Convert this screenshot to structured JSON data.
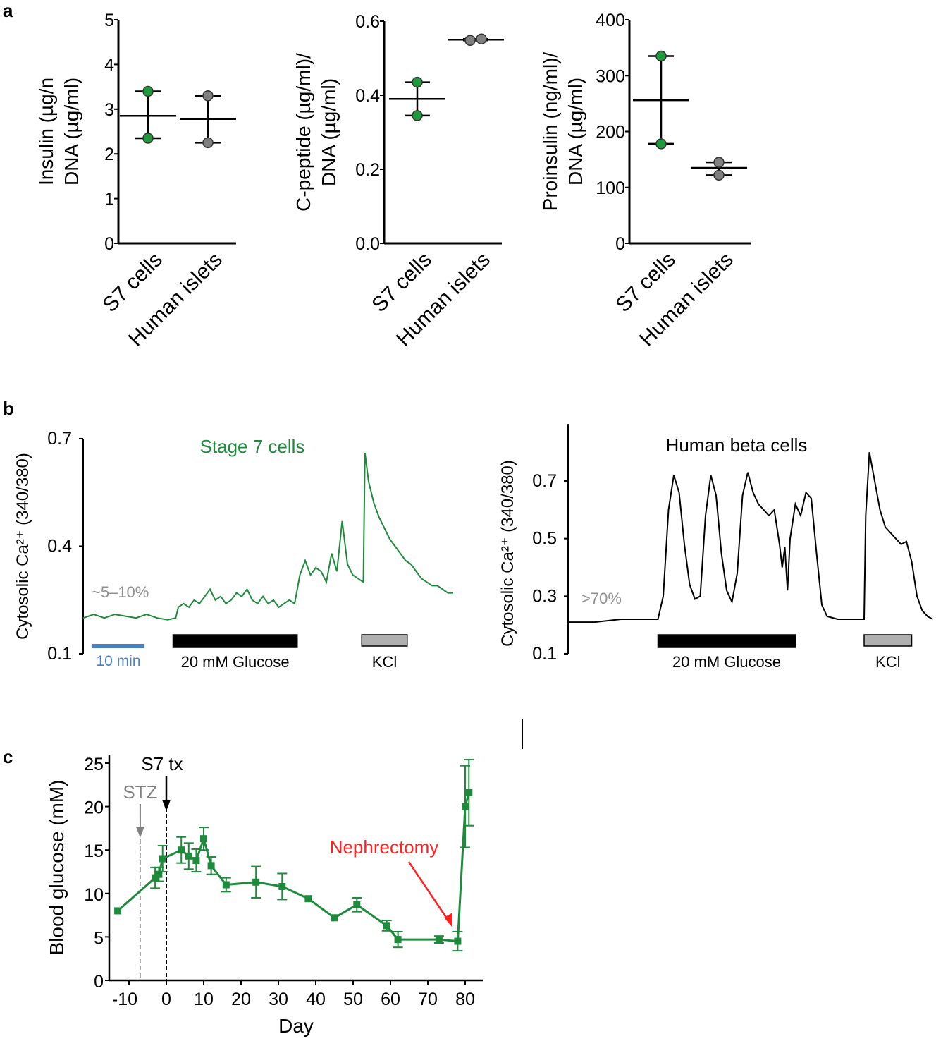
{
  "panel_labels": [
    "a",
    "b",
    "c"
  ],
  "chart_data": [
    {
      "type": "scatter",
      "panel": "a",
      "ylabel_lines": [
        "Insulin (µg/n",
        "DNA (µg/ml)"
      ],
      "ylim": [
        0,
        5
      ],
      "yticks": [
        "0",
        "1",
        "2",
        "3",
        "4",
        "5"
      ],
      "categories": [
        "S7 cells",
        "Human islets"
      ],
      "series": [
        {
          "category": "S7 cells",
          "points": [
            3.4,
            2.35
          ],
          "mean": 2.85,
          "color": "#1e9a3c"
        },
        {
          "category": "Human islets",
          "points": [
            3.3,
            2.25
          ],
          "mean": 2.78,
          "color": "#808080"
        }
      ]
    },
    {
      "type": "scatter",
      "panel": "a",
      "ylabel_lines": [
        "C-peptide (µg/ml)/",
        "DNA (µg/ml)"
      ],
      "ylim": [
        0,
        0.6
      ],
      "yticks": [
        "0.0",
        "0.2",
        "0.4",
        "0.6"
      ],
      "categories": [
        "S7 cells",
        "Human islets"
      ],
      "series": [
        {
          "category": "S7 cells",
          "points": [
            0.435,
            0.345
          ],
          "mean": 0.39,
          "color": "#1e9a3c"
        },
        {
          "category": "Human islets",
          "points": [
            0.548,
            0.552
          ],
          "mean": 0.55,
          "color": "#808080"
        }
      ]
    },
    {
      "type": "scatter",
      "panel": "a",
      "ylabel_lines": [
        "Proinsulin (ng/ml)/",
        "DNA (µg/ml)"
      ],
      "ylim": [
        0,
        400
      ],
      "yticks": [
        "0",
        "100",
        "200",
        "300",
        "400"
      ],
      "categories": [
        "S7 cells",
        "Human islets"
      ],
      "series": [
        {
          "category": "S7 cells",
          "points": [
            335,
            178
          ],
          "mean": 256,
          "color": "#1e9a3c"
        },
        {
          "category": "Human islets",
          "points": [
            145,
            122
          ],
          "mean": 135,
          "color": "#808080"
        }
      ]
    },
    {
      "type": "line",
      "panel": "b",
      "title": "Stage 7 cells",
      "title_color": "#1e8a3c",
      "ylabel": "Cytosolic Ca²⁺ (340/380)",
      "ylim": [
        0.1,
        0.7
      ],
      "yticks": [
        "0.1",
        "0.4",
        "0.7"
      ],
      "annotation": "~5–10%",
      "scale_bar_label": "10 min",
      "scale_bar_color": "#4a7fc1",
      "stimuli": [
        {
          "label": "20 mM Glucose",
          "start": 17,
          "end": 40.5,
          "color": "#000000"
        },
        {
          "label": "KCl",
          "start": 52.7,
          "end": 61.3,
          "color": "#b0b0b0"
        }
      ],
      "color": "#1e8a3c",
      "points": [
        [
          0,
          0.2
        ],
        [
          2,
          0.21
        ],
        [
          4,
          0.2
        ],
        [
          6,
          0.21
        ],
        [
          8,
          0.205
        ],
        [
          10,
          0.2
        ],
        [
          12,
          0.21
        ],
        [
          14,
          0.2
        ],
        [
          16,
          0.195
        ],
        [
          17.5,
          0.2
        ],
        [
          18,
          0.23
        ],
        [
          19,
          0.24
        ],
        [
          20,
          0.23
        ],
        [
          21,
          0.25
        ],
        [
          22,
          0.24
        ],
        [
          23,
          0.26
        ],
        [
          24,
          0.28
        ],
        [
          25,
          0.25
        ],
        [
          26,
          0.26
        ],
        [
          27,
          0.24
        ],
        [
          28,
          0.25
        ],
        [
          29,
          0.27
        ],
        [
          30,
          0.26
        ],
        [
          31,
          0.28
        ],
        [
          32,
          0.25
        ],
        [
          33,
          0.24
        ],
        [
          34,
          0.26
        ],
        [
          35,
          0.24
        ],
        [
          36,
          0.25
        ],
        [
          37,
          0.23
        ],
        [
          38,
          0.24
        ],
        [
          39,
          0.25
        ],
        [
          40,
          0.24
        ],
        [
          41,
          0.32
        ],
        [
          42,
          0.36
        ],
        [
          43,
          0.32
        ],
        [
          44,
          0.34
        ],
        [
          45,
          0.33
        ],
        [
          46,
          0.3
        ],
        [
          47,
          0.38
        ],
        [
          48,
          0.33
        ],
        [
          49,
          0.47
        ],
        [
          50,
          0.35
        ],
        [
          51,
          0.32
        ],
        [
          52,
          0.31
        ],
        [
          53,
          0.3
        ],
        [
          53.3,
          0.66
        ],
        [
          54,
          0.58
        ],
        [
          55,
          0.52
        ],
        [
          56,
          0.48
        ],
        [
          57,
          0.45
        ],
        [
          58,
          0.42
        ],
        [
          59,
          0.4
        ],
        [
          60,
          0.38
        ],
        [
          61,
          0.36
        ],
        [
          62,
          0.35
        ],
        [
          63,
          0.33
        ],
        [
          64,
          0.31
        ],
        [
          65,
          0.3
        ],
        [
          66,
          0.29
        ],
        [
          67,
          0.29
        ],
        [
          68,
          0.28
        ],
        [
          69,
          0.27
        ],
        [
          70,
          0.27
        ]
      ]
    },
    {
      "type": "line",
      "panel": "b",
      "title": "Human beta cells",
      "ylabel": "Cytosolic Ca²⁺ (340/380)",
      "ylim": [
        0.1,
        0.8
      ],
      "yticks": [
        "0.1",
        "0.3",
        "0.5",
        "0.7"
      ],
      "annotation": ">70%",
      "stimuli": [
        {
          "label": "20 mM Glucose",
          "start": 17,
          "end": 43,
          "color": "#000000"
        },
        {
          "label": "KCl",
          "start": 56,
          "end": 65,
          "color": "#b0b0b0"
        }
      ],
      "color": "#000000",
      "points": [
        [
          0,
          0.21
        ],
        [
          5,
          0.21
        ],
        [
          10,
          0.22
        ],
        [
          17,
          0.22
        ],
        [
          18,
          0.3
        ],
        [
          19,
          0.6
        ],
        [
          20,
          0.72
        ],
        [
          21,
          0.66
        ],
        [
          22,
          0.48
        ],
        [
          23,
          0.34
        ],
        [
          24,
          0.29
        ],
        [
          25,
          0.3
        ],
        [
          26,
          0.58
        ],
        [
          27,
          0.72
        ],
        [
          28,
          0.65
        ],
        [
          29,
          0.45
        ],
        [
          30,
          0.32
        ],
        [
          31,
          0.28
        ],
        [
          32,
          0.38
        ],
        [
          33,
          0.65
        ],
        [
          34,
          0.73
        ],
        [
          35,
          0.66
        ],
        [
          36,
          0.62
        ],
        [
          37,
          0.6
        ],
        [
          38,
          0.58
        ],
        [
          39,
          0.6
        ],
        [
          40,
          0.48
        ],
        [
          40.5,
          0.4
        ],
        [
          41,
          0.47
        ],
        [
          41.5,
          0.32
        ],
        [
          42,
          0.5
        ],
        [
          43,
          0.62
        ],
        [
          44,
          0.58
        ],
        [
          45,
          0.66
        ],
        [
          46,
          0.64
        ],
        [
          47,
          0.45
        ],
        [
          48,
          0.27
        ],
        [
          49,
          0.23
        ],
        [
          51,
          0.22
        ],
        [
          56,
          0.22
        ],
        [
          56.3,
          0.58
        ],
        [
          57,
          0.8
        ],
        [
          58,
          0.7
        ],
        [
          59,
          0.6
        ],
        [
          60,
          0.54
        ],
        [
          61,
          0.52
        ],
        [
          62,
          0.5
        ],
        [
          63,
          0.48
        ],
        [
          64,
          0.49
        ],
        [
          65,
          0.42
        ],
        [
          66,
          0.3
        ],
        [
          67,
          0.25
        ],
        [
          68,
          0.23
        ],
        [
          69,
          0.22
        ]
      ]
    },
    {
      "type": "line",
      "panel": "c",
      "xlabel": "Day",
      "ylabel": "Blood glucose (mM)",
      "xlim": [
        -15,
        85
      ],
      "ylim": [
        0,
        25
      ],
      "xticks": [
        "-10",
        "0",
        "10",
        "20",
        "30",
        "40",
        "50",
        "60",
        "70",
        "80"
      ],
      "yticks": [
        "0",
        "5",
        "10",
        "15",
        "20",
        "25"
      ],
      "color": "#1e8a3c",
      "events": [
        {
          "label": "STZ",
          "day": -7,
          "color": "#808080"
        },
        {
          "label": "S7 tx",
          "day": 0,
          "color": "#000000"
        }
      ],
      "annotation": {
        "label": "Nephrectomy",
        "color": "#ff2020",
        "day": 78
      },
      "points": [
        {
          "day": -13,
          "mean": 8,
          "err": 0.2
        },
        {
          "day": -3,
          "mean": 11.8,
          "err": 1.2
        },
        {
          "day": -2,
          "mean": 12.2,
          "err": 0.8
        },
        {
          "day": -1,
          "mean": 14,
          "err": 1.5
        },
        {
          "day": 4,
          "mean": 15,
          "err": 1.5
        },
        {
          "day": 6,
          "mean": 14.3,
          "err": 1.5
        },
        {
          "day": 8,
          "mean": 13.8,
          "err": 1.3
        },
        {
          "day": 10,
          "mean": 16.3,
          "err": 1.3
        },
        {
          "day": 12,
          "mean": 13.2,
          "err": 1
        },
        {
          "day": 16,
          "mean": 11,
          "err": 0.8
        },
        {
          "day": 24,
          "mean": 11.3,
          "err": 1.8
        },
        {
          "day": 31,
          "mean": 10.8,
          "err": 1.5
        },
        {
          "day": 38,
          "mean": 9.4,
          "err": 0.3
        },
        {
          "day": 45,
          "mean": 7.2,
          "err": 0.1
        },
        {
          "day": 51,
          "mean": 8.7,
          "err": 0.8
        },
        {
          "day": 59,
          "mean": 6.3,
          "err": 0.6
        },
        {
          "day": 62,
          "mean": 4.7,
          "err": 0.9
        },
        {
          "day": 73,
          "mean": 4.7,
          "err": 0.4
        },
        {
          "day": 78,
          "mean": 4.5,
          "err": 1.1
        },
        {
          "day": 80,
          "mean": 20,
          "err": 4.7
        },
        {
          "day": 81,
          "mean": 21.6,
          "err": 3.8
        }
      ]
    }
  ]
}
